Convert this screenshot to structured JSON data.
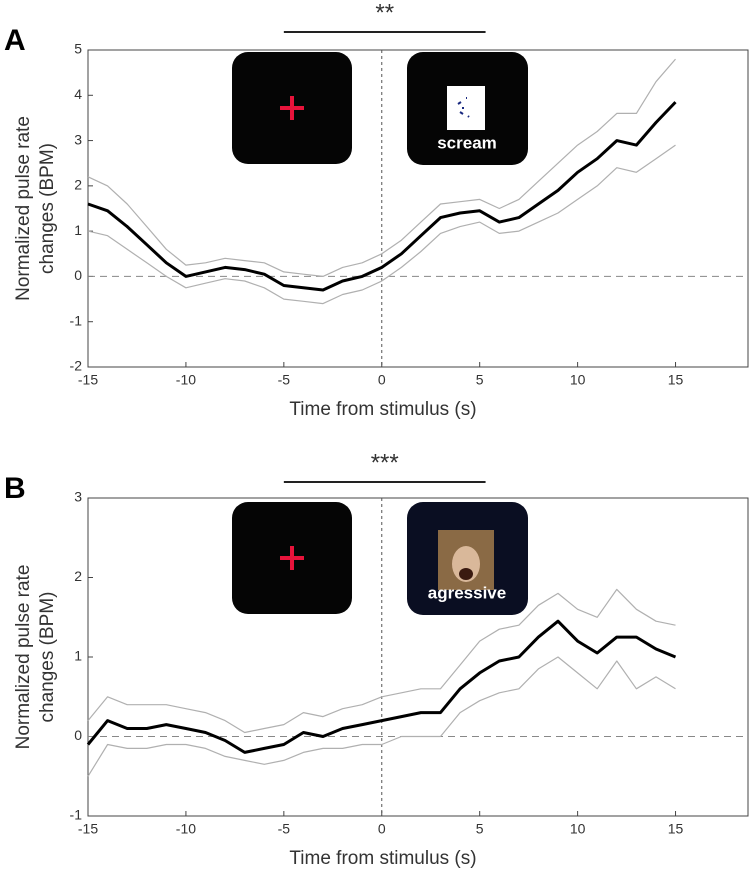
{
  "chart_data": [
    {
      "type": "line",
      "title": "A",
      "significance_label": "**",
      "significance_range": [
        -5,
        5.3
      ],
      "stimulus_label": "scream",
      "xlabel": "Time from stimulus (s)",
      "ylabel": [
        "Normalized pulse rate",
        "changes (BPM)"
      ],
      "xlim": [
        -15,
        18.7
      ],
      "ylim": [
        -2,
        5
      ],
      "xticks": [
        -15,
        -10,
        -5,
        0,
        5,
        10,
        15
      ],
      "yticks": [
        -2,
        -1,
        0,
        1,
        2,
        3,
        4,
        5
      ],
      "x": [
        -15,
        -14,
        -13,
        -12,
        -11,
        -10,
        -9,
        -8,
        -7,
        -6,
        -5,
        -4,
        -3,
        -2,
        -1,
        0,
        1,
        2,
        3,
        4,
        5,
        6,
        7,
        8,
        9,
        10,
        11,
        12,
        13,
        14,
        15
      ],
      "series": [
        {
          "color": "#000000",
          "values": [
            1.6,
            1.45,
            1.1,
            0.7,
            0.3,
            0.0,
            0.1,
            0.2,
            0.15,
            0.05,
            -0.2,
            -0.25,
            -0.3,
            -0.1,
            0.0,
            0.2,
            0.5,
            0.9,
            1.3,
            1.4,
            1.45,
            1.2,
            1.3,
            1.6,
            1.9,
            2.3,
            2.6,
            3.0,
            2.9,
            3.4,
            3.85
          ]
        },
        {
          "color": "#b0b0b0",
          "values": [
            2.2,
            2.0,
            1.6,
            1.1,
            0.6,
            0.25,
            0.3,
            0.4,
            0.35,
            0.3,
            0.1,
            0.05,
            0.0,
            0.2,
            0.3,
            0.5,
            0.8,
            1.2,
            1.6,
            1.65,
            1.7,
            1.5,
            1.7,
            2.1,
            2.5,
            2.9,
            3.2,
            3.6,
            3.6,
            4.3,
            4.8
          ]
        },
        {
          "color": "#b0b0b0",
          "values": [
            1.0,
            0.9,
            0.6,
            0.3,
            0.0,
            -0.25,
            -0.15,
            -0.05,
            -0.1,
            -0.25,
            -0.5,
            -0.55,
            -0.6,
            -0.4,
            -0.3,
            -0.1,
            0.2,
            0.55,
            0.95,
            1.1,
            1.2,
            0.95,
            1.0,
            1.2,
            1.4,
            1.7,
            2.0,
            2.4,
            2.3,
            2.6,
            2.9
          ]
        }
      ]
    },
    {
      "type": "line",
      "title": "B",
      "significance_label": "***",
      "significance_range": [
        -5,
        5.3
      ],
      "stimulus_label": "agressive",
      "xlabel": "Time from stimulus (s)",
      "ylabel": [
        "Normalized pulse rate",
        "changes (BPM)"
      ],
      "xlim": [
        -15,
        18.7
      ],
      "ylim": [
        -1,
        3
      ],
      "xticks": [
        -15,
        -10,
        -5,
        0,
        5,
        10,
        15
      ],
      "yticks": [
        -1,
        0,
        1,
        2,
        3
      ],
      "x": [
        -15,
        -14,
        -13,
        -12,
        -11,
        -10,
        -9,
        -8,
        -7,
        -6,
        -5,
        -4,
        -3,
        -2,
        -1,
        0,
        1,
        2,
        3,
        4,
        5,
        6,
        7,
        8,
        9,
        10,
        11,
        12,
        13,
        14,
        15
      ],
      "series": [
        {
          "color": "#000000",
          "values": [
            -0.1,
            0.2,
            0.1,
            0.1,
            0.15,
            0.1,
            0.05,
            -0.05,
            -0.2,
            -0.15,
            -0.1,
            0.05,
            0.0,
            0.1,
            0.15,
            0.2,
            0.25,
            0.3,
            0.3,
            0.6,
            0.8,
            0.95,
            1.0,
            1.25,
            1.45,
            1.2,
            1.05,
            1.25,
            1.25,
            1.1,
            1.0
          ]
        },
        {
          "color": "#b0b0b0",
          "values": [
            0.2,
            0.5,
            0.4,
            0.4,
            0.4,
            0.35,
            0.3,
            0.2,
            0.05,
            0.1,
            0.15,
            0.3,
            0.25,
            0.35,
            0.4,
            0.5,
            0.55,
            0.6,
            0.6,
            0.9,
            1.2,
            1.35,
            1.4,
            1.65,
            1.8,
            1.6,
            1.5,
            1.85,
            1.6,
            1.45,
            1.4
          ]
        },
        {
          "color": "#b0b0b0",
          "values": [
            -0.5,
            -0.1,
            -0.15,
            -0.15,
            -0.1,
            -0.1,
            -0.15,
            -0.25,
            -0.3,
            -0.35,
            -0.3,
            -0.2,
            -0.15,
            -0.15,
            -0.1,
            -0.1,
            0.0,
            0.0,
            0.0,
            0.3,
            0.45,
            0.55,
            0.6,
            0.85,
            1.0,
            0.8,
            0.6,
            0.95,
            0.6,
            0.75,
            0.6
          ]
        }
      ]
    }
  ]
}
